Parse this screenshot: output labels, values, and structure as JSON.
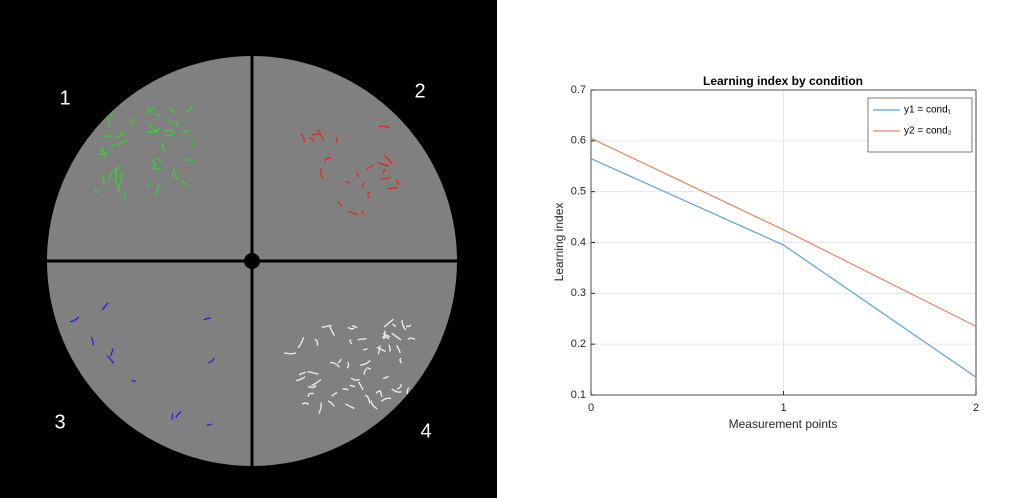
{
  "panel": {
    "quadrant_labels": [
      "1",
      "2",
      "3",
      "4"
    ]
  },
  "chart_data": {
    "type": "line",
    "title": "Learning index by condition",
    "x_label": "Measurement points",
    "y_label": "Learning index",
    "x": [
      0,
      1,
      2
    ],
    "series": [
      {
        "name": "y1 = cond₁",
        "color": "#5ba3db",
        "values": [
          0.565,
          0.395,
          0.135
        ]
      },
      {
        "name": "y2 = cond₂",
        "color": "#e08a62",
        "values": [
          0.605,
          0.425,
          0.235
        ]
      }
    ],
    "xlim": [
      0,
      2
    ],
    "xticks": [
      0,
      1,
      2
    ],
    "ylim": [
      0.1,
      0.7
    ],
    "yticks": [
      0.1,
      0.2,
      0.3,
      0.4,
      0.5,
      0.6,
      0.7
    ],
    "grid": true,
    "legend": "upper-right"
  }
}
